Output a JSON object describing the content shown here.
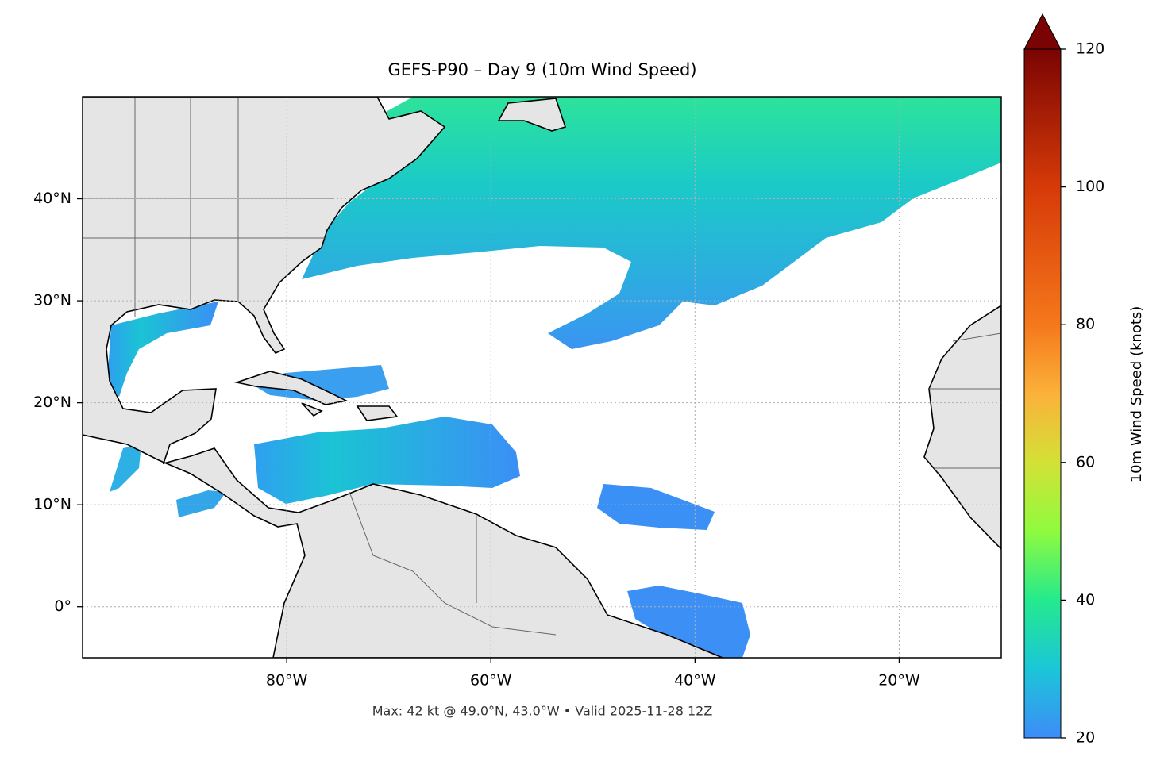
{
  "chart_data": {
    "type": "map",
    "title": "GEFS-P90 – Day 9 (10m Wind Speed)",
    "annotation": "Max: 42 kt @ 49.0°N, 43.0°W • Valid 2025-11-28 12Z",
    "xlim": [
      -100,
      -10
    ],
    "ylim": [
      -5,
      50
    ],
    "xticks": [
      {
        "value": -80,
        "label": "80°W"
      },
      {
        "value": -60,
        "label": "60°W"
      },
      {
        "value": -40,
        "label": "40°W"
      },
      {
        "value": -20,
        "label": "20°W"
      }
    ],
    "yticks": [
      {
        "value": 0,
        "label": "0°"
      },
      {
        "value": 10,
        "label": "10°N"
      },
      {
        "value": 20,
        "label": "20°N"
      },
      {
        "value": 30,
        "label": "30°N"
      },
      {
        "value": 40,
        "label": "40°N"
      }
    ],
    "grid": true,
    "colorbar": {
      "label": "10m Wind Speed (knots)",
      "lim": [
        20,
        120
      ],
      "ticks": [
        20,
        40,
        60,
        80,
        100,
        120
      ],
      "extend": "max"
    }
  }
}
